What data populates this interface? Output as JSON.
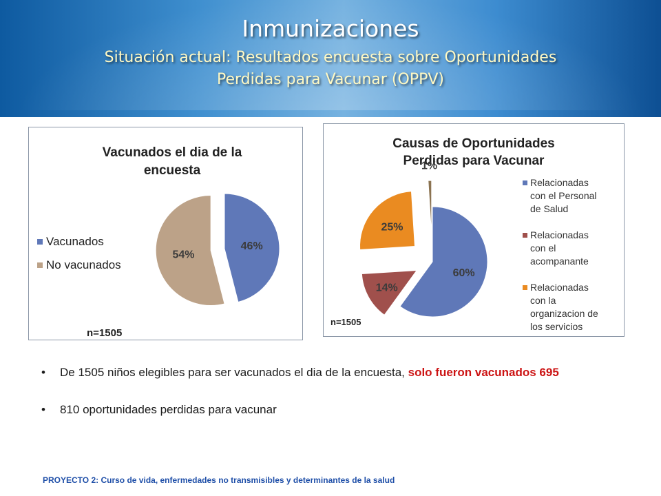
{
  "header": {
    "title": "Inmunizaciones",
    "subtitle_line1": "Situación actual: Resultados encuesta sobre Oportunidades",
    "subtitle_line2": "Perdidas para Vacunar (OPPV)"
  },
  "chart_data": [
    {
      "type": "pie",
      "title_lines": [
        "Vacunados el dia de la",
        "encuesta"
      ],
      "categories": [
        "Vacunados",
        "No vacunados"
      ],
      "values": [
        46,
        54
      ],
      "labels": [
        "46%",
        "54%"
      ],
      "colors": [
        "#5f78b8",
        "#bca288"
      ],
      "exploded": true,
      "legend_position": "left",
      "note": "n=1505"
    },
    {
      "type": "pie",
      "title_lines": [
        "Causas de Oportunidades",
        "Perdidas para Vacunar"
      ],
      "categories": [
        "Relacionadas con el Personal de Salud",
        "Relacionadas con el acompanante",
        "Relacionadas con la organizacion de los servicios",
        ""
      ],
      "legend_lines": [
        [
          "Relacionadas",
          "con el Personal",
          "de Salud"
        ],
        [
          "Relacionadas",
          "con el",
          "acompanante"
        ],
        [
          "Relacionadas",
          "con la",
          "organizacion de",
          "los servicios"
        ]
      ],
      "values": [
        60,
        14,
        25,
        1
      ],
      "labels": [
        "60%",
        "14%",
        "25%",
        "1%"
      ],
      "colors": [
        "#5f78b8",
        "#a0504c",
        "#ea8b21",
        "#8b7351"
      ],
      "exploded": true,
      "legend_position": "right",
      "note": "n=1505"
    }
  ],
  "bullets": {
    "item1_text": "De 1505 niños elegibles para ser vacunados el dia de la encuesta, ",
    "item1_highlight": "solo fueron vacunados 695",
    "item2_text": "810 oportunidades perdidas para vacunar"
  },
  "footer": {
    "text": "PROYECTO 2:  Curso de vida, enfermedades no transmisibles y determinantes de la salud"
  },
  "colors": {
    "banner_blue": "#1565b0",
    "subtitle_yellow": "#fff9c4",
    "highlight_red": "#cc1414",
    "footer_blue": "#1f4fa8"
  }
}
